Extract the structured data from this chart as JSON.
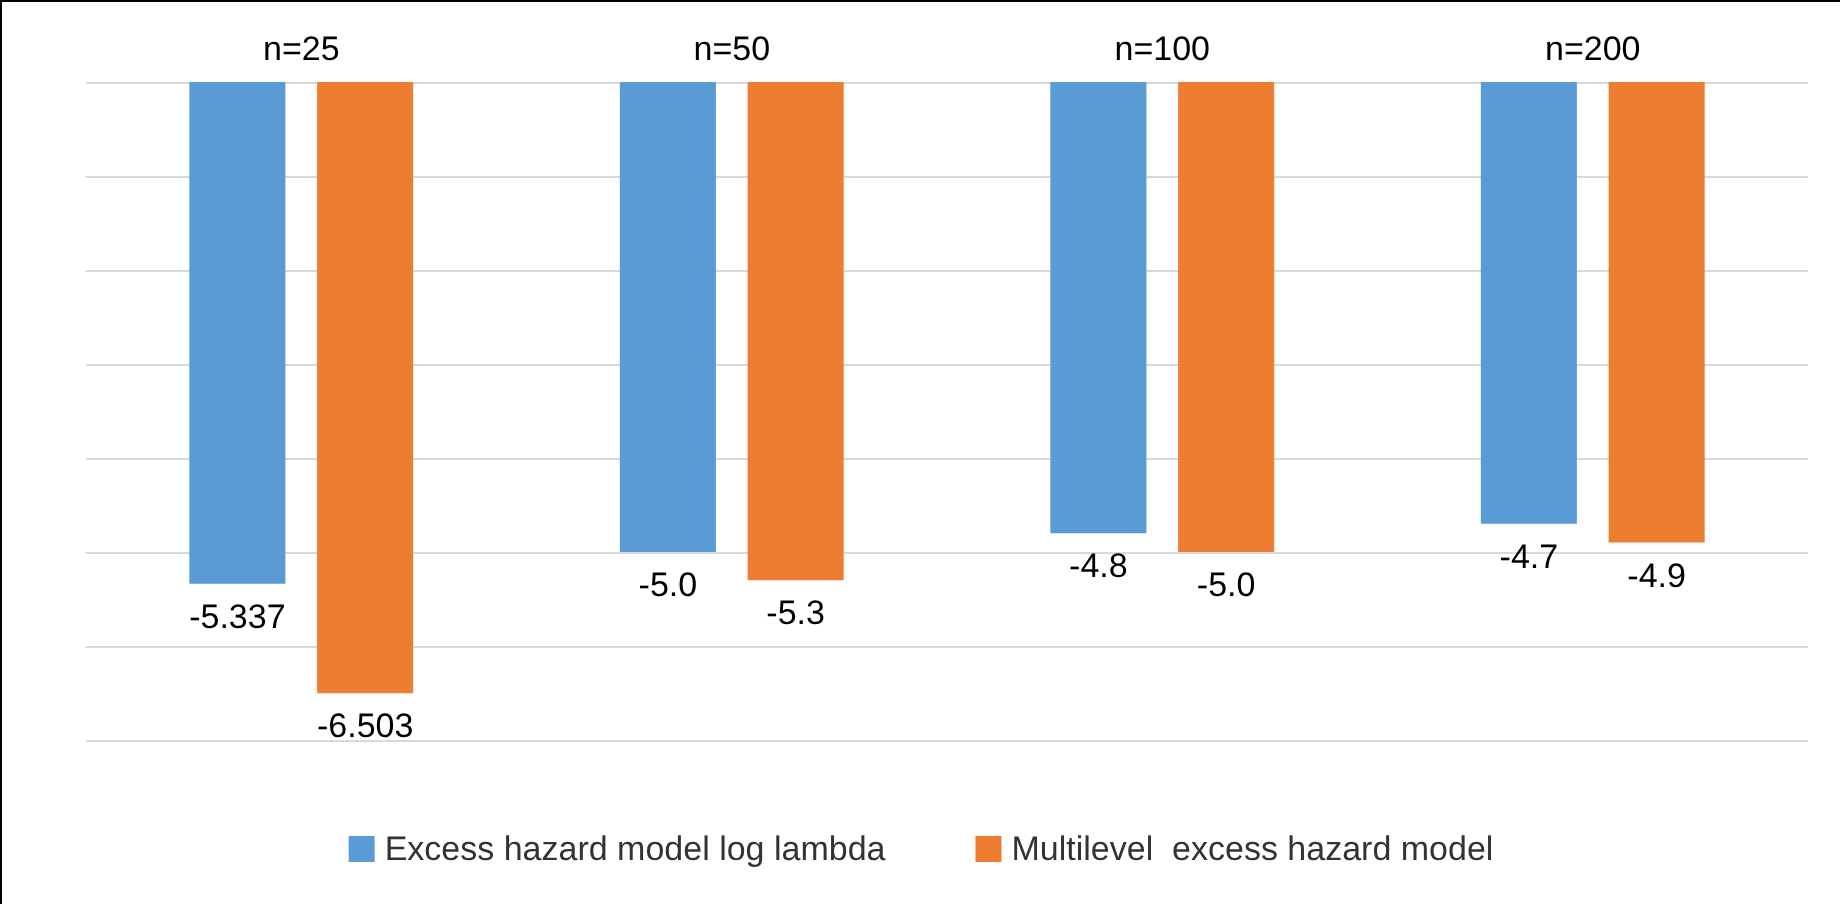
{
  "chart_data": {
    "type": "bar",
    "categories": [
      "n=25",
      "n=50",
      "n=100",
      "n=200"
    ],
    "series": [
      {
        "name": "Excess hazard model log lambda",
        "color": "#5b9bd5",
        "values": [
          -5.337,
          -5.0,
          -4.8,
          -4.7
        ],
        "value_labels": [
          "-5.337",
          "-5.0",
          "-4.8",
          "-4.7"
        ]
      },
      {
        "name": "Multilevel  excess hazard model",
        "color": "#ed7d31",
        "values": [
          -6.503,
          -5.3,
          -5.0,
          -4.9
        ],
        "value_labels": [
          "-6.503",
          "-5.3",
          "-5.0",
          "-4.9"
        ]
      }
    ],
    "ylim": [
      -7,
      0
    ],
    "yticks": [
      {
        "value": -7,
        "label": null
      },
      {
        "value": -6,
        "label": null
      },
      {
        "value": -5,
        "label": null
      },
      {
        "value": -4,
        "label": null
      },
      {
        "value": -3,
        "label": null
      },
      {
        "value": -2,
        "label": null
      },
      {
        "value": -1,
        "label": null
      },
      {
        "value": 0,
        "label": null
      }
    ],
    "grid": "y",
    "legend": "bottom",
    "tick_labels": "x"
  }
}
